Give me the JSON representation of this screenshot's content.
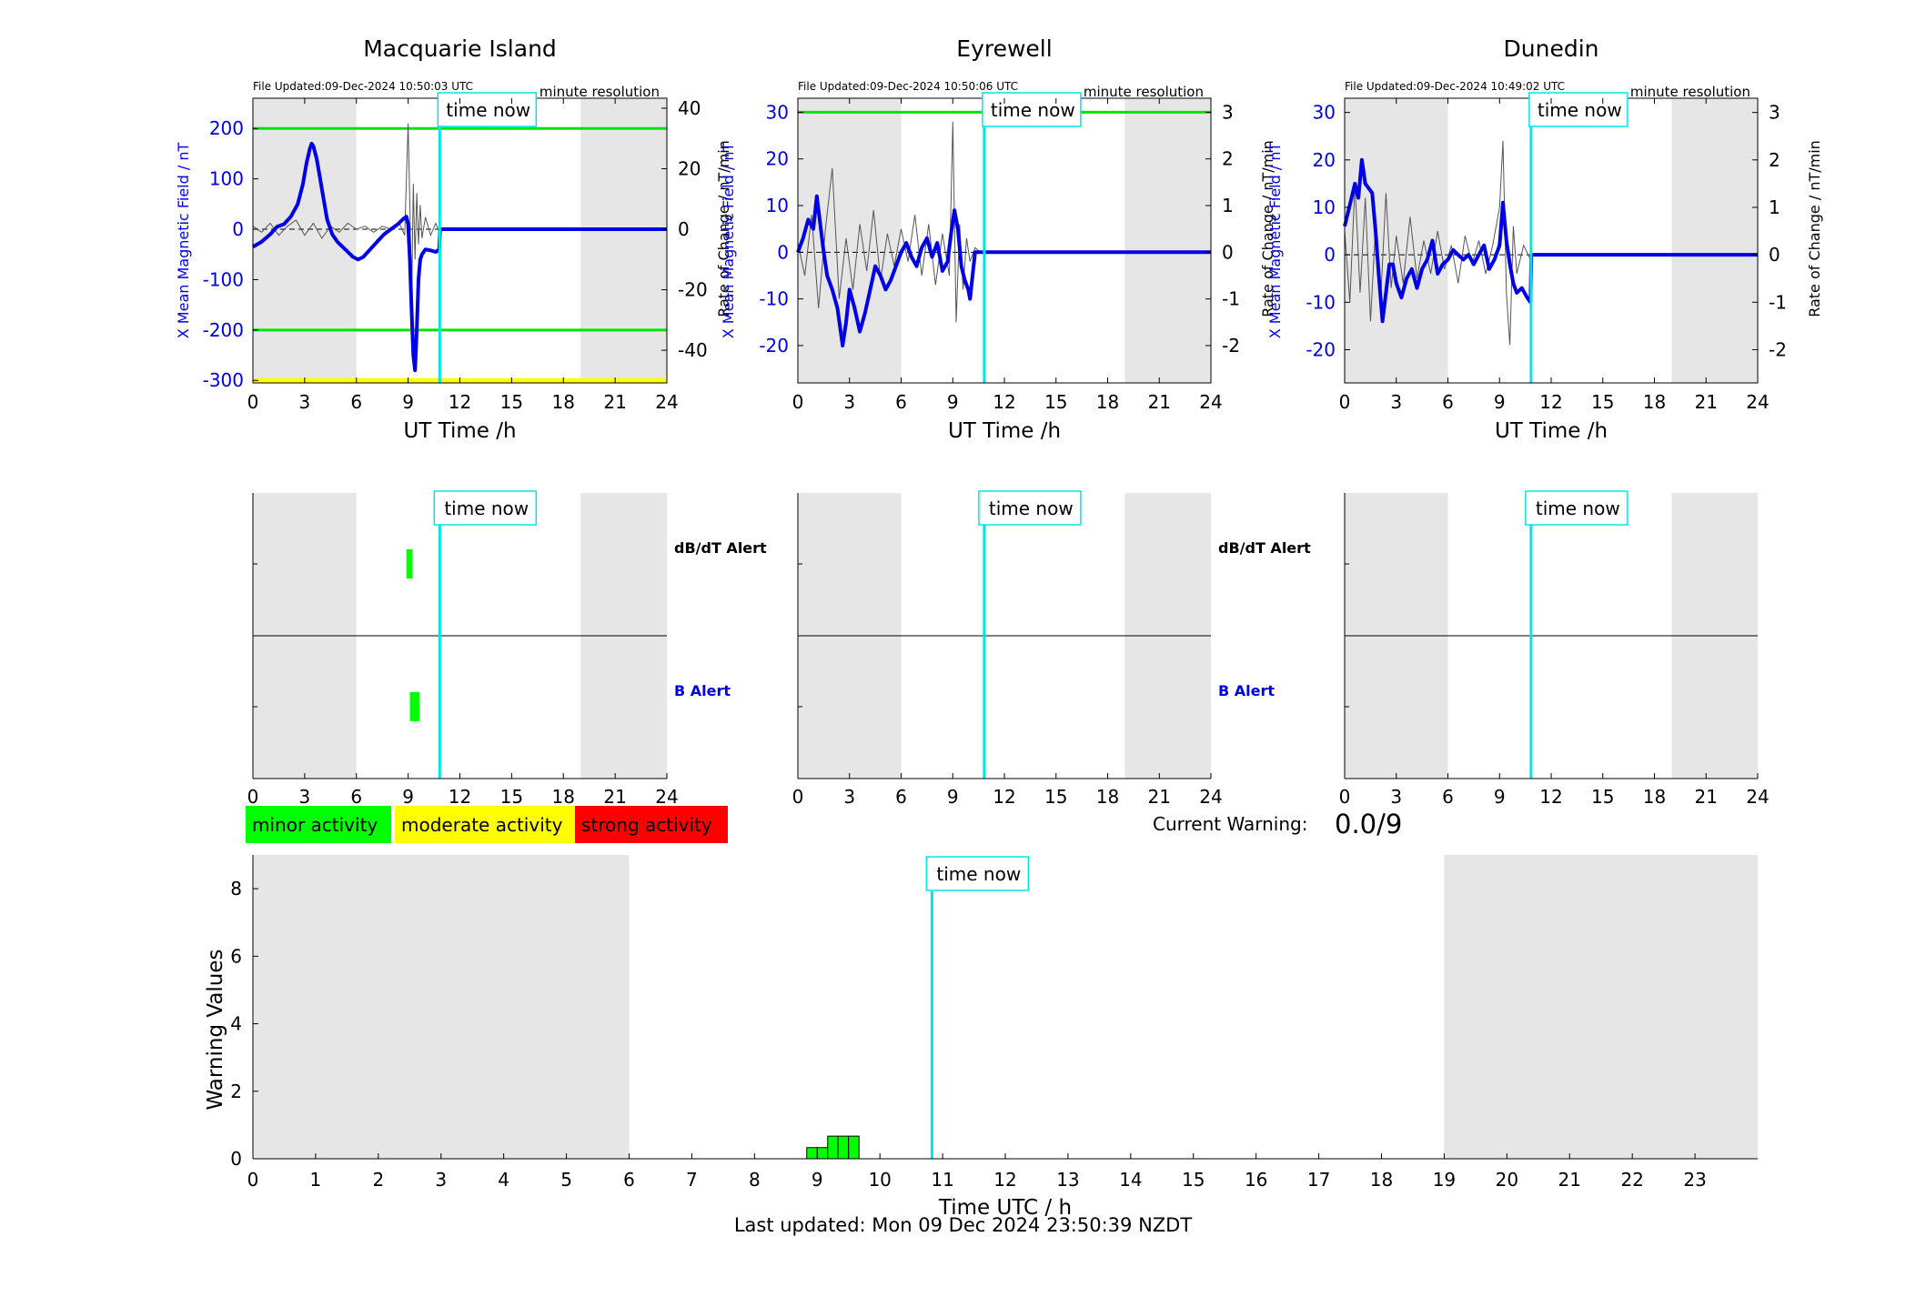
{
  "colors": {
    "shade": "#e6e6e6",
    "field": "#0000e6",
    "rate": "#555555",
    "threshold": "#00e600",
    "yellow": "#ffff00",
    "now": "#00e6e6",
    "minor": "#00ff00",
    "moderate": "#ffff00",
    "strong": "#ff0000"
  },
  "labels": {
    "time_now": "time now",
    "minute_resolution": "minute resolution",
    "x_axis": "UT Time /h",
    "y_left": "X Mean Magnetic Field / nT",
    "y_right": "Rate of Change / nT/min",
    "dbdt_alert": "dB/dT Alert",
    "b_alert": "B Alert",
    "current_warning_label": "Current Warning:",
    "current_warning_value": "0.0/9"
  },
  "legend": [
    {
      "label": "minor activity",
      "color": "#00ff00"
    },
    {
      "label": "moderate activity",
      "color": "#ffff00"
    },
    {
      "label": "strong activity",
      "color": "#ff0000"
    }
  ],
  "footer": "Last updated: Mon 09 Dec 2024 23:50:39 NZDT",
  "chart_data": [
    {
      "type": "line",
      "station": "Macquarie Island",
      "title": "Macquarie Island",
      "file_updated": "File Updated:09-Dec-2024 10:50:03 UTC",
      "xlabel": "UT Time /h",
      "ylabel": "X Mean Magnetic Field / nT",
      "y2label": "Rate of Change / nT/min",
      "xlim": [
        0,
        24
      ],
      "xticks": [
        0,
        3,
        6,
        9,
        12,
        15,
        18,
        21,
        24
      ],
      "ylim": [
        -305,
        260
      ],
      "yticks": [
        200,
        100,
        0,
        -100,
        -200,
        -300
      ],
      "y2lim": [
        -50.8,
        43.3
      ],
      "y2ticks": [
        40,
        20,
        0,
        -20,
        -40
      ],
      "shaded_x": [
        [
          0,
          6
        ],
        [
          19,
          24
        ]
      ],
      "time_now": 10.83,
      "thresholds": [
        200,
        -200
      ],
      "yellow_level": -300,
      "field_series": {
        "name": "X Mean Magnetic Field",
        "x": [
          0,
          0.5,
          1,
          1.4,
          1.8,
          2.2,
          2.6,
          2.9,
          3.1,
          3.3,
          3.4,
          3.5,
          3.7,
          3.9,
          4.1,
          4.3,
          4.6,
          4.9,
          5.2,
          5.5,
          5.8,
          6.1,
          6.4,
          6.8,
          7.2,
          7.6,
          8,
          8.4,
          8.7,
          8.9,
          9.0,
          9.1,
          9.2,
          9.3,
          9.4,
          9.5,
          9.6,
          9.7,
          9.8,
          10.0,
          10.3,
          10.6,
          10.8,
          10.85,
          24
        ],
        "values": [
          -35,
          -25,
          -10,
          5,
          10,
          25,
          50,
          90,
          130,
          160,
          170,
          165,
          140,
          100,
          60,
          20,
          -10,
          -25,
          -35,
          -45,
          -55,
          -60,
          -55,
          -40,
          -25,
          -10,
          0,
          10,
          20,
          25,
          10,
          -60,
          -160,
          -250,
          -280,
          -200,
          -100,
          -60,
          -50,
          -40,
          -42,
          -45,
          -40,
          0,
          0
        ]
      },
      "rate_series": {
        "name": "Rate of Change",
        "x": [
          0,
          0.5,
          1,
          1.5,
          2,
          2.5,
          3,
          3.5,
          4,
          4.5,
          5,
          5.5,
          6,
          6.5,
          7,
          7.5,
          8,
          8.5,
          8.8,
          9.0,
          9.1,
          9.2,
          9.3,
          9.4,
          9.5,
          9.6,
          9.7,
          9.8,
          10,
          10.3,
          10.6,
          10.8,
          10.85,
          24
        ],
        "values": [
          1,
          -1,
          2,
          -2,
          1,
          3,
          -2,
          2,
          -3,
          1,
          -1,
          2,
          0,
          1,
          -1,
          1,
          0,
          2,
          -2,
          35,
          8,
          -25,
          15,
          -10,
          12,
          -5,
          8,
          -3,
          4,
          -2,
          2,
          -1,
          0,
          0
        ]
      },
      "alerts": {
        "dbdt": [
          {
            "x0": 8.9,
            "x1": 9.25
          }
        ],
        "b": [
          {
            "x0": 9.1,
            "x1": 9.65
          }
        ]
      }
    },
    {
      "type": "line",
      "station": "Eyrewell",
      "title": "Eyrewell",
      "file_updated": "File Updated:09-Dec-2024 10:50:06 UTC",
      "xlabel": "UT Time /h",
      "ylabel": "X Mean Magnetic Field / nT",
      "y2label": "Rate of Change / nT/min",
      "xlim": [
        0,
        24
      ],
      "xticks": [
        0,
        3,
        6,
        9,
        12,
        15,
        18,
        21,
        24
      ],
      "ylim": [
        -28,
        33
      ],
      "yticks": [
        30,
        20,
        10,
        0,
        -10,
        -20
      ],
      "y2lim": [
        -2.8,
        3.3
      ],
      "y2ticks": [
        3,
        2,
        1,
        0,
        -1,
        -2
      ],
      "shaded_x": [
        [
          0,
          6
        ],
        [
          19,
          24
        ]
      ],
      "time_now": 10.83,
      "thresholds": [
        30
      ],
      "field_series": {
        "name": "X Mean Magnetic Field",
        "x": [
          0,
          0.3,
          0.6,
          0.9,
          1.1,
          1.3,
          1.5,
          1.7,
          2.0,
          2.3,
          2.6,
          2.8,
          3.0,
          3.3,
          3.6,
          3.9,
          4.2,
          4.5,
          4.8,
          5.1,
          5.4,
          5.7,
          6.0,
          6.3,
          6.6,
          6.9,
          7.2,
          7.5,
          7.8,
          8.1,
          8.4,
          8.7,
          8.9,
          9.1,
          9.3,
          9.5,
          9.7,
          9.9,
          10.0,
          10.3,
          10.6,
          10.85,
          24
        ],
        "values": [
          0,
          3,
          7,
          5,
          12,
          6,
          0,
          -5,
          -8,
          -12,
          -20,
          -15,
          -8,
          -12,
          -17,
          -13,
          -8,
          -3,
          -5,
          -8,
          -6,
          -3,
          0,
          2,
          -1,
          -3,
          1,
          3,
          -1,
          2,
          -4,
          -2,
          4,
          9,
          5,
          -3,
          -6,
          -8,
          -10,
          0,
          0,
          0,
          0
        ]
      },
      "rate_series": {
        "name": "Rate of Change",
        "x": [
          0,
          0.4,
          0.8,
          1.2,
          1.6,
          2.0,
          2.4,
          2.8,
          3.2,
          3.6,
          4.0,
          4.4,
          4.8,
          5.2,
          5.6,
          6.0,
          6.4,
          6.8,
          7.2,
          7.6,
          8.0,
          8.4,
          8.8,
          9.0,
          9.2,
          9.4,
          9.6,
          9.8,
          10.0,
          10.3,
          10.6,
          10.85,
          24
        ],
        "values": [
          0.2,
          -0.5,
          0.8,
          -1.2,
          0.5,
          1.8,
          -1.0,
          0.3,
          -0.8,
          0.6,
          -0.4,
          0.9,
          -0.6,
          0.4,
          -0.3,
          0.5,
          -0.2,
          0.8,
          -0.5,
          0.6,
          -0.7,
          0.4,
          -0.5,
          2.8,
          -1.5,
          0.6,
          -0.8,
          0.3,
          -0.2,
          0.1,
          0,
          0,
          0
        ]
      },
      "alerts": {
        "dbdt": [],
        "b": []
      }
    },
    {
      "type": "line",
      "station": "Dunedin",
      "title": "Dunedin",
      "file_updated": "File Updated:09-Dec-2024 10:49:02 UTC",
      "xlabel": "UT Time /h",
      "ylabel": "X Mean Magnetic Field / nT",
      "y2label": "Rate of Change / nT/min",
      "xlim": [
        0,
        24
      ],
      "xticks": [
        0,
        3,
        6,
        9,
        12,
        15,
        18,
        21,
        24
      ],
      "ylim": [
        -27,
        33
      ],
      "yticks": [
        30,
        20,
        10,
        0,
        -10,
        -20
      ],
      "y2lim": [
        -2.7,
        3.3
      ],
      "y2ticks": [
        3,
        2,
        1,
        0,
        -1,
        -2
      ],
      "shaded_x": [
        [
          0,
          6
        ],
        [
          19,
          24
        ]
      ],
      "time_now": 10.83,
      "thresholds": [],
      "field_series": {
        "name": "X Mean Magnetic Field",
        "x": [
          0,
          0.2,
          0.4,
          0.6,
          0.8,
          1.0,
          1.2,
          1.4,
          1.6,
          1.8,
          2.0,
          2.2,
          2.4,
          2.6,
          2.8,
          3.0,
          3.3,
          3.6,
          3.9,
          4.2,
          4.5,
          4.8,
          5.1,
          5.4,
          5.7,
          6.0,
          6.3,
          6.6,
          6.9,
          7.2,
          7.5,
          7.8,
          8.1,
          8.4,
          8.7,
          9.0,
          9.2,
          9.4,
          9.6,
          9.8,
          10.0,
          10.3,
          10.6,
          10.8,
          10.85,
          24
        ],
        "values": [
          6,
          9,
          12,
          15,
          12,
          20,
          15,
          14,
          13,
          5,
          -5,
          -14,
          -8,
          -2,
          -2,
          -6,
          -9,
          -5,
          -3,
          -7,
          -3,
          -1,
          3,
          -4,
          -2,
          -1,
          1,
          0,
          -1,
          0,
          -2,
          0,
          2,
          -3,
          -1,
          2,
          11,
          3,
          -2,
          -6,
          -8,
          -7,
          -9,
          -10,
          0,
          0
        ]
      },
      "rate_series": {
        "name": "Rate of Change",
        "x": [
          0,
          0.3,
          0.6,
          0.9,
          1.2,
          1.5,
          1.8,
          2.1,
          2.4,
          2.7,
          3.0,
          3.4,
          3.8,
          4.2,
          4.6,
          5.0,
          5.4,
          5.8,
          6.2,
          6.6,
          7.0,
          7.4,
          7.8,
          8.2,
          8.6,
          9.0,
          9.2,
          9.4,
          9.6,
          9.8,
          10.0,
          10.4,
          10.8,
          10.85,
          24
        ],
        "values": [
          0.5,
          -1.0,
          1.5,
          -0.8,
          1.2,
          -1.4,
          0.6,
          -0.9,
          1.3,
          -0.7,
          0.4,
          -0.6,
          0.8,
          -0.5,
          0.3,
          -0.4,
          0.5,
          -0.3,
          0.2,
          -0.6,
          0.4,
          -0.2,
          0.3,
          -0.4,
          0.2,
          1.0,
          2.4,
          -0.8,
          -1.9,
          0.6,
          -0.4,
          0.2,
          -0.1,
          0,
          0
        ]
      },
      "alerts": {
        "dbdt": [],
        "b": []
      }
    },
    {
      "type": "bar",
      "title": "",
      "xlabel": "Time UTC / h",
      "ylabel": "Warning Values",
      "xlim": [
        0,
        24
      ],
      "xticks": [
        0,
        1,
        2,
        3,
        4,
        5,
        6,
        7,
        8,
        9,
        10,
        11,
        12,
        13,
        14,
        15,
        16,
        17,
        18,
        19,
        20,
        21,
        22,
        23
      ],
      "ylim": [
        0,
        9
      ],
      "yticks": [
        0,
        2,
        4,
        6,
        8
      ],
      "shaded_x": [
        [
          0,
          6
        ],
        [
          19,
          24
        ]
      ],
      "time_now": 10.83,
      "bars": {
        "x": [
          8.833,
          9.0,
          9.167,
          9.333,
          9.5
        ],
        "values": [
          0.33,
          0.33,
          0.67,
          0.67,
          0.67
        ],
        "width": 0.1667,
        "color": "#00ff00"
      }
    }
  ]
}
